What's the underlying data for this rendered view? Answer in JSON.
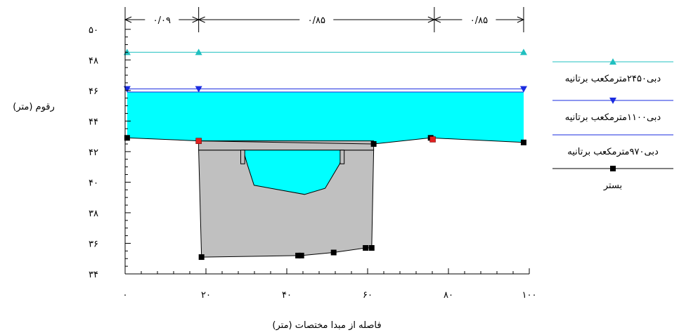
{
  "chart_data": {
    "type": "area",
    "xlabel": "فاصله از مبدا مختصات (متر)",
    "ylabel": "رقوم (متر)",
    "xlim": [
      0,
      100
    ],
    "ylim": [
      34,
      51
    ],
    "x_ticks": [
      {
        "value": 0,
        "label": "۰"
      },
      {
        "value": 20,
        "label": "۲۰"
      },
      {
        "value": 40,
        "label": "۴۰"
      },
      {
        "value": 60,
        "label": "۶۰"
      },
      {
        "value": 80,
        "label": "۸۰"
      },
      {
        "value": 100,
        "label": "۱۰۰"
      }
    ],
    "y_ticks": [
      {
        "value": 34,
        "label": "۳۴"
      },
      {
        "value": 36,
        "label": "۳۶"
      },
      {
        "value": 38,
        "label": "۳۸"
      },
      {
        "value": 40,
        "label": "۴۰"
      },
      {
        "value": 42,
        "label": "۴۲"
      },
      {
        "value": 44,
        "label": "۴۴"
      },
      {
        "value": 46,
        "label": "۴۶"
      },
      {
        "value": 48,
        "label": "۴۸"
      },
      {
        "value": 50,
        "label": "۵۰"
      }
    ],
    "dimensions": [
      {
        "from": 0,
        "to": 18.2,
        "label": "۰/۰۹"
      },
      {
        "from": 18.2,
        "to": 76.5,
        "label": "۰/۸۵"
      },
      {
        "from": 76.5,
        "to": 98.6,
        "label": "۰/۸۵"
      }
    ],
    "series": [
      {
        "name": "دبی۲۴۵۰مترمکعب برتانیه",
        "color": "#20c0c0",
        "marker": "triangle-up",
        "points": [
          [
            0.5,
            48.5
          ],
          [
            18.2,
            48.5
          ],
          [
            98.6,
            48.5
          ]
        ]
      },
      {
        "name": "دبی۱۱۰۰مترمکعب برتانیه",
        "color": "#1a2be0",
        "marker": "triangle-down",
        "points": [
          [
            0.5,
            46.1
          ],
          [
            18.2,
            46.1
          ],
          [
            98.6,
            46.1
          ]
        ]
      },
      {
        "name": "دبی۹۷۰مترمکعب برتانیه",
        "color": "#1a2be0",
        "marker": "none",
        "points": [
          [
            0.5,
            45.9
          ],
          [
            98.6,
            45.9
          ]
        ]
      },
      {
        "name": "بستر",
        "color": "#000000",
        "marker": "square",
        "points": [
          [
            0.5,
            42.9
          ],
          [
            18.2,
            42.7
          ],
          [
            61.5,
            42.5
          ],
          [
            75.6,
            42.9
          ],
          [
            98.6,
            42.6
          ]
        ]
      }
    ],
    "bed_profile": [
      [
        0.5,
        42.9
      ],
      [
        18.2,
        42.7
      ],
      [
        61.5,
        42.5
      ],
      [
        75.6,
        42.9
      ],
      [
        98.6,
        42.6
      ]
    ],
    "water_fill": {
      "color": "#00ffff",
      "level": 45.9
    },
    "structure": {
      "color": "#c0c0c0",
      "deck": {
        "x": [
          18.2,
          61.5
        ],
        "top": 42.7,
        "bottom": 42.1
      },
      "outline": [
        [
          18.2,
          42.1
        ],
        [
          18.9,
          35.1
        ],
        [
          42.8,
          35.2
        ],
        [
          43.6,
          35.2
        ],
        [
          51.6,
          35.4
        ],
        [
          59.5,
          35.7
        ],
        [
          61.0,
          35.7
        ],
        [
          61.5,
          42.1
        ]
      ],
      "inner_channel": [
        [
          29.2,
          42.1
        ],
        [
          30.2,
          41.2
        ],
        [
          31.9,
          39.8
        ],
        [
          44.4,
          39.2
        ],
        [
          49.5,
          39.6
        ],
        [
          53.1,
          41.2
        ],
        [
          54.1,
          42.1
        ]
      ],
      "piers": [
        [
          28.6,
          29.6
        ],
        [
          53.2,
          54.2
        ]
      ],
      "bottom_markers": [
        [
          18.9,
          35.1
        ],
        [
          42.8,
          35.2
        ],
        [
          43.6,
          35.2
        ],
        [
          51.6,
          35.4
        ],
        [
          59.5,
          35.7
        ],
        [
          61.0,
          35.7
        ]
      ]
    },
    "red_markers": [
      [
        18.2,
        42.7
      ],
      [
        76.1,
        42.8
      ]
    ]
  }
}
